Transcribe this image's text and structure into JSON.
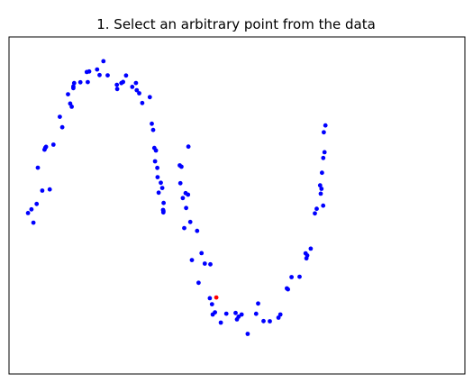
{
  "chart_data": {
    "type": "scatter",
    "title": "1. Select an arbitrary point from the data",
    "xlabel": "",
    "ylabel": "",
    "xlim": [
      -1.2,
      2.2
    ],
    "ylim": [
      -0.75,
      1.25
    ],
    "axis_ticks_visible": false,
    "grid": false,
    "point_color": "#0000ff",
    "selected_color": "#ff0000",
    "series": [
      {
        "points": [
          [
            -1.058,
            0.205
          ],
          [
            -1.033,
            0.227
          ],
          [
            -1.018,
            0.148
          ],
          [
            -0.994,
            0.259
          ],
          [
            -0.985,
            0.474
          ],
          [
            -0.952,
            0.338
          ],
          [
            -0.935,
            0.581
          ],
          [
            -0.929,
            0.593
          ],
          [
            -0.924,
            0.598
          ],
          [
            -0.896,
            0.345
          ],
          [
            -0.869,
            0.611
          ],
          [
            -0.821,
            0.776
          ],
          [
            -0.803,
            0.714
          ],
          [
            -0.76,
            0.91
          ],
          [
            -0.744,
            0.855
          ],
          [
            -0.732,
            0.836
          ],
          [
            -0.72,
            0.946
          ],
          [
            -0.72,
            0.956
          ],
          [
            -0.714,
            0.976
          ],
          [
            -0.668,
            0.981
          ],
          [
            -0.62,
            1.042
          ],
          [
            -0.613,
            0.982
          ],
          [
            -0.602,
            1.045
          ],
          [
            -0.543,
            1.057
          ],
          [
            -0.525,
            1.024
          ],
          [
            -0.496,
            1.106
          ],
          [
            -0.464,
            1.022
          ],
          [
            -0.396,
            0.966
          ],
          [
            -0.393,
            0.941
          ],
          [
            -0.362,
            0.976
          ],
          [
            -0.349,
            0.983
          ],
          [
            -0.327,
            1.021
          ],
          [
            -0.281,
            0.954
          ],
          [
            -0.253,
            0.977
          ],
          [
            -0.247,
            0.934
          ],
          [
            -0.229,
            0.916
          ],
          [
            -0.206,
            0.858
          ],
          [
            -0.15,
            0.893
          ],
          [
            -0.135,
            0.735
          ],
          [
            -0.125,
            0.698
          ],
          [
            -0.116,
            0.591
          ],
          [
            -0.111,
            0.512
          ],
          [
            -0.104,
            0.576
          ],
          [
            -0.094,
            0.473
          ],
          [
            -0.092,
            0.418
          ],
          [
            -0.084,
            0.326
          ],
          [
            -0.068,
            0.385
          ],
          [
            -0.057,
            0.354
          ],
          [
            -0.051,
            0.223
          ],
          [
            -0.049,
            0.209
          ],
          [
            -0.048,
            0.217
          ],
          [
            -0.047,
            0.265
          ]
        ]
      },
      {
        "points": [
          [
            0.073,
            0.488
          ],
          [
            0.078,
            0.382
          ],
          [
            0.086,
            0.48
          ],
          [
            0.096,
            0.294
          ],
          [
            0.107,
            0.116
          ],
          [
            0.117,
            0.323
          ],
          [
            0.121,
            0.235
          ],
          [
            0.135,
            0.314
          ],
          [
            0.138,
            0.599
          ],
          [
            0.152,
            0.152
          ],
          [
            0.164,
            -0.074
          ],
          [
            0.203,
            0.099
          ],
          [
            0.214,
            -0.209
          ],
          [
            0.236,
            -0.033
          ],
          [
            0.26,
            -0.095
          ],
          [
            0.298,
            -0.3
          ],
          [
            0.302,
            -0.099
          ],
          [
            0.314,
            -0.336
          ],
          [
            0.319,
            -0.397
          ],
          [
            0.336,
            -0.384
          ],
          [
            0.38,
            -0.445
          ],
          [
            0.421,
            -0.392
          ],
          [
            0.49,
            -0.388
          ],
          [
            0.5,
            -0.426
          ],
          [
            0.512,
            -0.41
          ],
          [
            0.535,
            -0.397
          ],
          [
            0.58,
            -0.512
          ],
          [
            0.643,
            -0.393
          ],
          [
            0.658,
            -0.332
          ],
          [
            0.698,
            -0.436
          ],
          [
            0.745,
            -0.437
          ],
          [
            0.81,
            -0.416
          ],
          [
            0.824,
            -0.397
          ],
          [
            0.872,
            -0.242
          ],
          [
            0.88,
            -0.248
          ],
          [
            0.907,
            -0.175
          ],
          [
            0.967,
            -0.173
          ],
          [
            1.012,
            -0.034
          ],
          [
            1.018,
            -0.064
          ],
          [
            1.024,
            -0.047
          ],
          [
            1.05,
            -0.006
          ],
          [
            1.081,
            0.203
          ],
          [
            1.095,
            0.23
          ],
          [
            1.12,
            0.369
          ],
          [
            1.125,
            0.32
          ],
          [
            1.13,
            0.349
          ],
          [
            1.134,
            0.444
          ],
          [
            1.143,
            0.249
          ],
          [
            1.144,
            0.532
          ],
          [
            1.148,
            0.684
          ],
          [
            1.153,
            0.566
          ],
          [
            1.16,
            0.725
          ]
        ]
      }
    ],
    "selected_point": [
      0.346,
      -0.296
    ]
  }
}
